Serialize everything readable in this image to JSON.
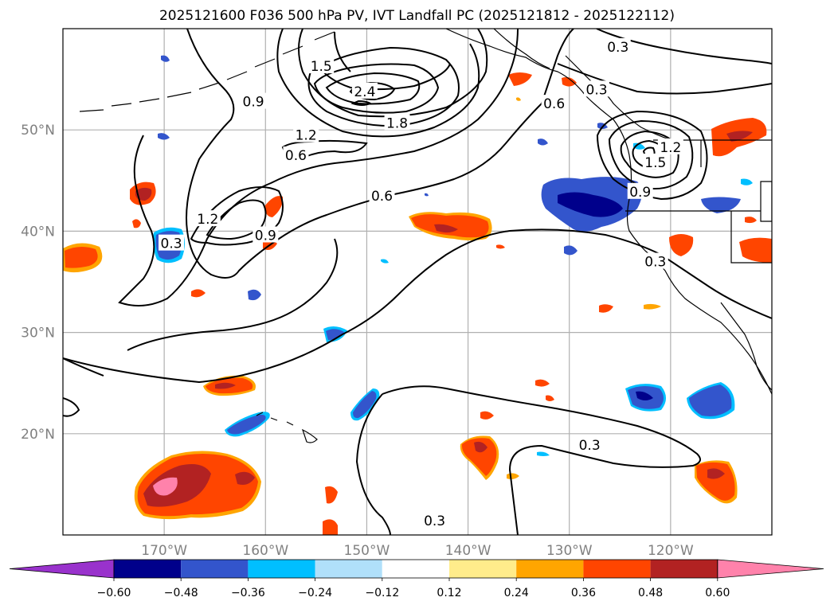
{
  "title": "2025121600 F036 500 hPa PV, IVT Landfall PC (2025121812 - 2025122112)",
  "map": {
    "projection": "PlateCarree",
    "lon_range": [
      -180,
      -110
    ],
    "lat_range": [
      10,
      60
    ],
    "gridline_color": "#b0b0b0",
    "tick_label_color": "#808080",
    "lon_ticks": [
      {
        "value": -170,
        "label": "170°W"
      },
      {
        "value": -160,
        "label": "160°W"
      },
      {
        "value": -150,
        "label": "150°W"
      },
      {
        "value": -140,
        "label": "140°W"
      },
      {
        "value": -130,
        "label": "130°W"
      },
      {
        "value": -120,
        "label": "120°W"
      }
    ],
    "lat_ticks": [
      {
        "value": 20,
        "label": "20°N"
      },
      {
        "value": 30,
        "label": "30°N"
      },
      {
        "value": 40,
        "label": "40°N"
      },
      {
        "value": 50,
        "label": "50°N"
      }
    ]
  },
  "contours": {
    "field": "500 hPa PV",
    "color": "#000000",
    "labels": [
      {
        "text": "0.3",
        "lon": -125.2,
        "lat": 58.2
      },
      {
        "text": "0.3",
        "lon": -127.3,
        "lat": 54.0
      },
      {
        "text": "0.6",
        "lon": -131.5,
        "lat": 52.6
      },
      {
        "text": "1.5",
        "lon": -154.5,
        "lat": 56.3
      },
      {
        "text": "2.4",
        "lon": -150.2,
        "lat": 53.8
      },
      {
        "text": "0.9",
        "lon": -161.2,
        "lat": 52.8
      },
      {
        "text": "1.8",
        "lon": -147.0,
        "lat": 50.7
      },
      {
        "text": "1.2",
        "lon": -156.0,
        "lat": 49.5
      },
      {
        "text": "0.6",
        "lon": -157.0,
        "lat": 47.5
      },
      {
        "text": "1.2",
        "lon": -120.0,
        "lat": 48.3
      },
      {
        "text": "1.5",
        "lon": -121.5,
        "lat": 46.8
      },
      {
        "text": "0.9",
        "lon": -123.0,
        "lat": 43.9
      },
      {
        "text": "0.6",
        "lon": -148.5,
        "lat": 43.5
      },
      {
        "text": "1.2",
        "lon": -165.7,
        "lat": 41.2
      },
      {
        "text": "0.9",
        "lon": -160.0,
        "lat": 39.6
      },
      {
        "text": "0.3",
        "lon": -169.3,
        "lat": 38.8
      },
      {
        "text": "0.3",
        "lon": -121.5,
        "lat": 37.0
      },
      {
        "text": "0.3",
        "lon": -128.0,
        "lat": 18.9
      },
      {
        "text": "0.3",
        "lon": -143.3,
        "lat": 11.4
      }
    ]
  },
  "shading": {
    "field": "IVT Landfall PC",
    "colorbar": {
      "colors": [
        "#9932cc",
        "#00008b",
        "#3355cc",
        "#00bfff",
        "#b0e0fa",
        "#ffffff",
        "#ffec8b",
        "#ffa500",
        "#ff4500",
        "#b22222",
        "#ff82ab"
      ],
      "tick_labels": [
        "−0.60",
        "−0.48",
        "−0.36",
        "−0.24",
        "−0.12",
        "0.12",
        "0.24",
        "0.36",
        "0.48",
        "0.60"
      ]
    }
  }
}
